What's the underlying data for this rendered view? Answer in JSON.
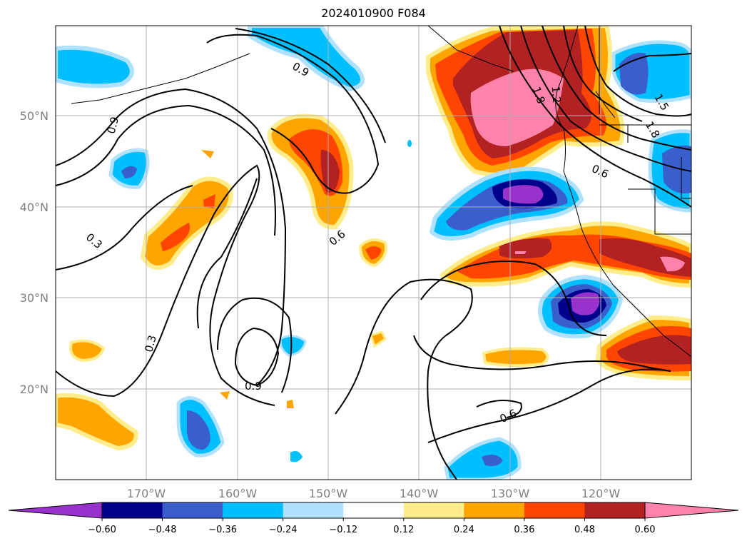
{
  "title": "2024010900 F084",
  "map": {
    "lat_labels": [
      "50°N",
      "40°N",
      "30°N",
      "20°N"
    ],
    "lon_labels": [
      "170°W",
      "160°W",
      "150°W",
      "140°W",
      "130°W",
      "120°W"
    ],
    "contour_labels": [
      "0.9",
      "0.9",
      "0.3",
      "0.3",
      "0.6",
      "0.6",
      "0.6",
      "0.9",
      "1.2",
      "1.5",
      "1.8",
      "1.8"
    ],
    "shading_colors": {
      "deep_neg": "#9932CC",
      "neg_048": "#00008B",
      "neg_036": "#3A5FCD",
      "neg_024": "#00BFFF",
      "neg_012": "#B0E2FF",
      "pos_012": "#FFEC8B",
      "pos_024": "#FFA500",
      "pos_036": "#FF4500",
      "pos_048": "#B22222",
      "pos_060": "#FF82AB"
    }
  },
  "colorbar": {
    "ticks": [
      "−0.60",
      "−0.48",
      "−0.36",
      "−0.24",
      "−0.12",
      "0.12",
      "0.24",
      "0.36",
      "0.48",
      "0.60"
    ],
    "colors": [
      "#9932CC",
      "#00008B",
      "#3A5FCD",
      "#00BFFF",
      "#B0E2FF",
      "#FFFFFF",
      "#FFEC8B",
      "#FFA500",
      "#FF4500",
      "#B22222",
      "#FF82AB"
    ]
  }
}
